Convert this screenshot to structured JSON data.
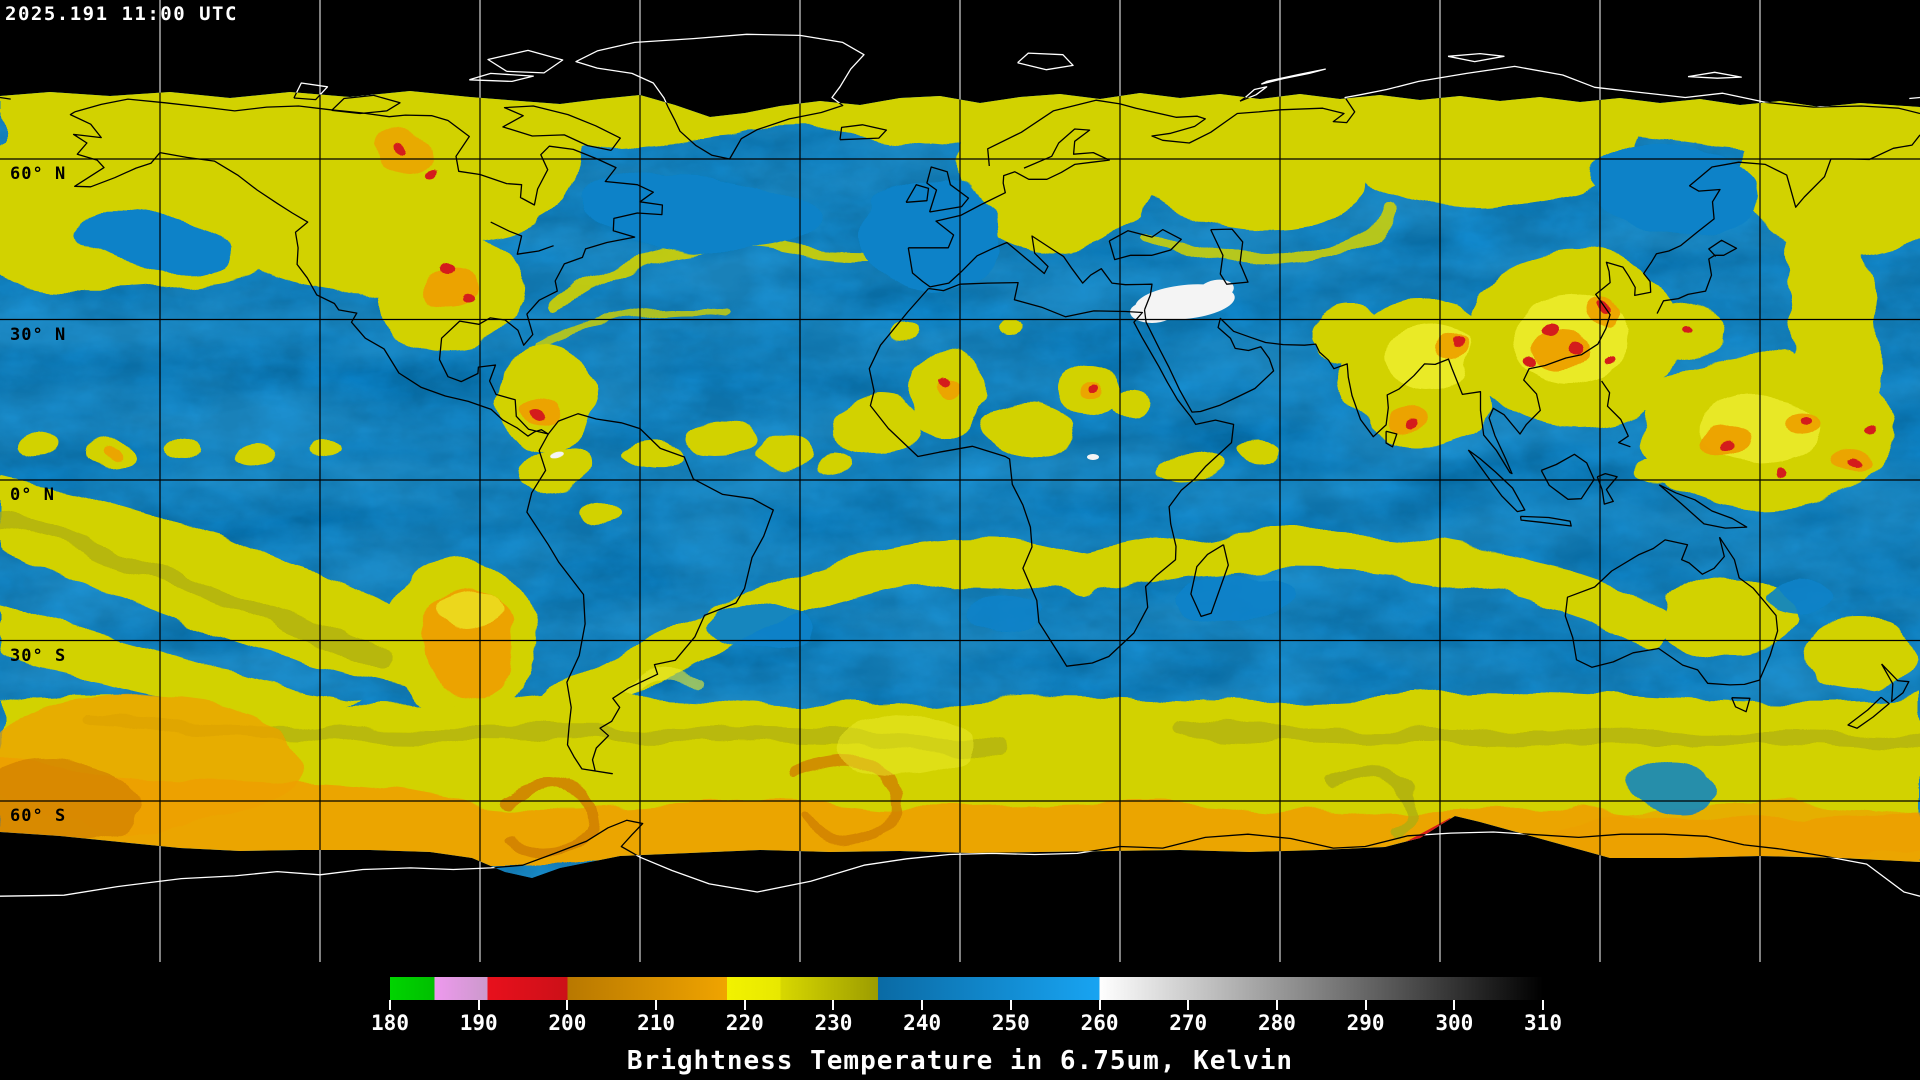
{
  "header": {
    "timestamp": "2025.191 11:00 UTC"
  },
  "map": {
    "latitude_labels": [
      {
        "text": "60° N",
        "lat": 60
      },
      {
        "text": "30° N",
        "lat": 30
      },
      {
        "text": "0° N",
        "lat": 0
      },
      {
        "text": "30° S",
        "lat": -30
      },
      {
        "text": "60° S",
        "lat": -60
      }
    ]
  },
  "colorbar": {
    "title": "Brightness Temperature in 6.75um, Kelvin",
    "range": [
      180,
      310
    ],
    "ticks": [
      "180",
      "190",
      "200",
      "210",
      "220",
      "230",
      "240",
      "250",
      "260",
      "270",
      "280",
      "290",
      "300",
      "310"
    ],
    "segments": [
      {
        "from": 180,
        "to": 185,
        "color_start": "#00d400",
        "color_end": "#00c000"
      },
      {
        "from": 185,
        "to": 191,
        "color_start": "#ee99ee",
        "color_end": "#cc99cc"
      },
      {
        "from": 191,
        "to": 200,
        "color_start": "#e8101c",
        "color_end": "#cc1018"
      },
      {
        "from": 200,
        "to": 218,
        "color_start": "#b87800",
        "color_end": "#f0a400"
      },
      {
        "from": 218,
        "to": 224,
        "color_start": "#f2f200",
        "color_end": "#e8e800"
      },
      {
        "from": 224,
        "to": 235,
        "color_start": "#d8d800",
        "color_end": "#9c9c00"
      },
      {
        "from": 235,
        "to": 260,
        "color_start": "#0a6aa4",
        "color_end": "#18a4f2"
      },
      {
        "from": 260,
        "to": 310,
        "color_start": "#ffffff",
        "color_end": "#000000"
      }
    ]
  },
  "colors": {
    "background": "#000000",
    "ocean": "#0a82c8",
    "ocean_shade": "#05496f",
    "ocean_light": "#3fb0e8",
    "cloud_yellow": "#d2d200",
    "cloud_olive": "#aeae0a",
    "cloud_bright": "#ecec2c",
    "cloud_orange": "#eda000",
    "cloud_orange_dark": "#d07f00",
    "cloud_red": "#d41a1a",
    "cloud_violet": "#dd88dd",
    "warm_white": "#f4f4f4",
    "coast_on_data": "#000000",
    "coast_on_space": "#ffffff",
    "grid_on_data": "#000000",
    "grid_on_space": "#ffffff",
    "label_text": "#000000",
    "annotation_text": "#ffffff"
  }
}
